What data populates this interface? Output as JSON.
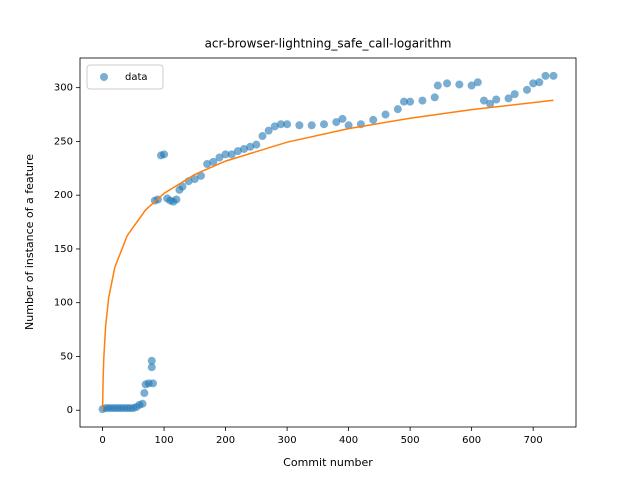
{
  "chart_data": {
    "type": "scatter",
    "title": "acr-browser-lightning_safe_call-logarithm",
    "x_label": "Commit number",
    "y_label": "Number of instance of a feature",
    "xlim": [
      -36.65,
      769.65
    ],
    "ylim": [
      -15.6,
      327.6
    ],
    "xticks": [
      0,
      100,
      200,
      300,
      400,
      500,
      600,
      700
    ],
    "yticks": [
      0,
      50,
      100,
      150,
      200,
      250,
      300
    ],
    "legend": "upper left",
    "series": [
      {
        "name": "data",
        "style": "points",
        "color": "#1f77b4",
        "x": [
          0,
          5,
          10,
          15,
          20,
          25,
          30,
          35,
          40,
          45,
          50,
          55,
          60,
          65,
          68,
          70,
          75,
          80,
          80,
          82,
          85,
          90,
          95,
          100,
          105,
          110,
          115,
          120,
          125,
          130,
          140,
          150,
          160,
          170,
          180,
          190,
          200,
          210,
          220,
          230,
          240,
          250,
          260,
          270,
          280,
          290,
          300,
          320,
          340,
          360,
          380,
          390,
          400,
          420,
          440,
          460,
          480,
          490,
          500,
          520,
          540,
          545,
          560,
          580,
          600,
          610,
          620,
          630,
          640,
          660,
          670,
          690,
          700,
          710,
          720,
          733
        ],
        "values": [
          1,
          2,
          2,
          2,
          2,
          2,
          2,
          2,
          2,
          2,
          2,
          3,
          5,
          6,
          16,
          24,
          25,
          40,
          46,
          25,
          195,
          196,
          237,
          238,
          197,
          195,
          194,
          196,
          205,
          208,
          213,
          215,
          218,
          229,
          231,
          235,
          238,
          238,
          241,
          243,
          245,
          247,
          255,
          260,
          264,
          266,
          266,
          265,
          265,
          266,
          268,
          271,
          265,
          266,
          270,
          275,
          280,
          287,
          287,
          288,
          291,
          302,
          304,
          303,
          302,
          305,
          288,
          285,
          289,
          290,
          294,
          298,
          304,
          305,
          311,
          311
        ]
      },
      {
        "style": "line",
        "color": "#ff7f0e",
        "x": [
          0,
          1,
          2,
          5,
          10,
          20,
          40,
          70,
          100,
          150,
          200,
          300,
          400,
          500,
          600,
          733
        ],
        "values": [
          0,
          30.3,
          48.0,
          78.3,
          104.8,
          133.0,
          162.3,
          186.3,
          201.7,
          219.3,
          231.7,
          249.3,
          261.9,
          271.6,
          279.6,
          288.3
        ]
      }
    ]
  }
}
